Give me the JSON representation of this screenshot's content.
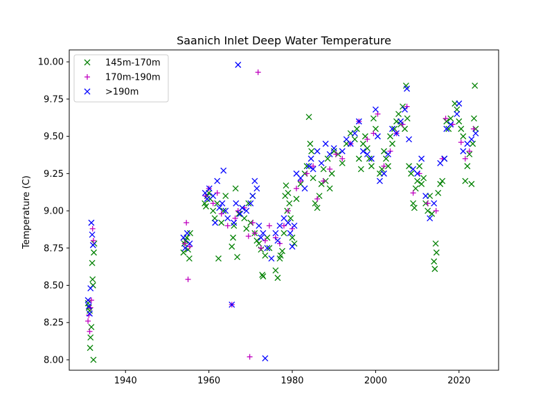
{
  "chart_data": {
    "type": "scatter",
    "title": "Saanich Inlet Deep Water Temperature",
    "xlabel": "",
    "ylabel": "Temperature (C)",
    "xlim": [
      1926.5,
      2029.5
    ],
    "ylim": [
      7.93,
      10.08
    ],
    "xticks": [
      1940,
      1960,
      1980,
      2000,
      2020
    ],
    "yticks": [
      "8.00",
      "8.25",
      "8.50",
      "8.75",
      "9.00",
      "9.25",
      "9.50",
      "9.75",
      "10.00"
    ],
    "grid": false,
    "legend_position": "upper-left",
    "series": [
      {
        "name": "145m-170m",
        "marker": "x",
        "color": "#008000",
        "points": [
          [
            1931.0,
            8.38
          ],
          [
            1931.2,
            8.35
          ],
          [
            1931.4,
            8.33
          ],
          [
            1931.5,
            8.08
          ],
          [
            1931.6,
            8.15
          ],
          [
            1931.8,
            8.22
          ],
          [
            1932.0,
            8.65
          ],
          [
            1932.1,
            8.54
          ],
          [
            1932.2,
            8.5
          ],
          [
            1932.3,
            8.0
          ],
          [
            1932.4,
            8.72
          ],
          [
            1932.5,
            8.78
          ],
          [
            1953.9,
            8.72
          ],
          [
            1954.1,
            8.78
          ],
          [
            1954.4,
            8.8
          ],
          [
            1954.7,
            8.82
          ],
          [
            1955.0,
            8.74
          ],
          [
            1955.3,
            8.68
          ],
          [
            1955.5,
            8.85
          ],
          [
            1959.0,
            9.05
          ],
          [
            1959.3,
            9.03
          ],
          [
            1959.6,
            9.1
          ],
          [
            1960.0,
            9.12
          ],
          [
            1960.3,
            9.08
          ],
          [
            1961.0,
            9.0
          ],
          [
            1961.4,
            8.95
          ],
          [
            1962.0,
            9.05
          ],
          [
            1962.3,
            8.68
          ],
          [
            1963.0,
            8.92
          ],
          [
            1963.5,
            9.0
          ],
          [
            1964.0,
            9.1
          ],
          [
            1965.5,
            8.76
          ],
          [
            1965.8,
            8.82
          ],
          [
            1966.0,
            8.9
          ],
          [
            1966.4,
            9.15
          ],
          [
            1966.8,
            8.69
          ],
          [
            1967.2,
            8.98
          ],
          [
            1968.0,
            9.02
          ],
          [
            1968.5,
            8.95
          ],
          [
            1969.0,
            8.88
          ],
          [
            1969.5,
            9.05
          ],
          [
            1970.0,
            8.92
          ],
          [
            1970.5,
            9.1
          ],
          [
            1971.0,
            8.85
          ],
          [
            1971.5,
            8.8
          ],
          [
            1972.0,
            8.78
          ],
          [
            1972.5,
            8.74
          ],
          [
            1972.8,
            8.57
          ],
          [
            1973.0,
            8.56
          ],
          [
            1973.5,
            8.7
          ],
          [
            1974.0,
            8.82
          ],
          [
            1974.5,
            8.75
          ],
          [
            1976.0,
            8.6
          ],
          [
            1976.5,
            8.55
          ],
          [
            1977.0,
            8.68
          ],
          [
            1977.2,
            8.7
          ],
          [
            1977.6,
            8.73
          ],
          [
            1978.0,
            8.85
          ],
          [
            1978.3,
            9.1
          ],
          [
            1978.5,
            9.17
          ],
          [
            1978.8,
            9.0
          ],
          [
            1979.0,
            9.12
          ],
          [
            1979.3,
            9.05
          ],
          [
            1979.6,
            8.95
          ],
          [
            1980.0,
            8.82
          ],
          [
            1980.5,
            8.78
          ],
          [
            1981.0,
            9.08
          ],
          [
            1982.0,
            9.18
          ],
          [
            1983.0,
            9.25
          ],
          [
            1983.5,
            9.3
          ],
          [
            1984.0,
            9.63
          ],
          [
            1984.3,
            9.45
          ],
          [
            1984.6,
            9.4
          ],
          [
            1985.0,
            9.22
          ],
          [
            1985.5,
            9.05
          ],
          [
            1986.0,
            9.02
          ],
          [
            1986.5,
            9.1
          ],
          [
            1987.0,
            9.18
          ],
          [
            1987.5,
            9.28
          ],
          [
            1988.0,
            9.2
          ],
          [
            1988.5,
            9.35
          ],
          [
            1989.0,
            9.15
          ],
          [
            1989.5,
            9.25
          ],
          [
            1990.0,
            9.4
          ],
          [
            1991.0,
            9.38
          ],
          [
            1992.0,
            9.32
          ],
          [
            1993.0,
            9.45
          ],
          [
            1994.0,
            9.52
          ],
          [
            1995.0,
            9.48
          ],
          [
            1995.5,
            9.55
          ],
          [
            1996.0,
            9.35
          ],
          [
            1996.5,
            9.28
          ],
          [
            1997.0,
            9.45
          ],
          [
            1997.5,
            9.5
          ],
          [
            1998.0,
            9.42
          ],
          [
            1998.5,
            9.35
          ],
          [
            1999.0,
            9.3
          ],
          [
            1999.5,
            9.62
          ],
          [
            2000.0,
            9.55
          ],
          [
            2001.0,
            9.25
          ],
          [
            2001.5,
            9.28
          ],
          [
            2002.0,
            9.4
          ],
          [
            2002.5,
            9.35
          ],
          [
            2003.0,
            9.3
          ],
          [
            2003.5,
            9.5
          ],
          [
            2004.0,
            9.45
          ],
          [
            2004.5,
            9.55
          ],
          [
            2005.0,
            9.6
          ],
          [
            2005.5,
            9.65
          ],
          [
            2006.0,
            9.58
          ],
          [
            2006.5,
            9.7
          ],
          [
            2007.0,
            9.55
          ],
          [
            2007.3,
            9.84
          ],
          [
            2007.6,
            9.62
          ],
          [
            2008.0,
            9.3
          ],
          [
            2008.5,
            9.25
          ],
          [
            2009.0,
            9.05
          ],
          [
            2009.3,
            9.02
          ],
          [
            2009.6,
            9.15
          ],
          [
            2010.0,
            9.2
          ],
          [
            2010.5,
            9.3
          ],
          [
            2011.0,
            9.18
          ],
          [
            2011.5,
            9.22
          ],
          [
            2012.0,
            9.05
          ],
          [
            2012.5,
            9.0
          ],
          [
            2013.0,
            9.1
          ],
          [
            2013.5,
            8.98
          ],
          [
            2014.0,
            8.66
          ],
          [
            2014.2,
            8.61
          ],
          [
            2014.4,
            8.78
          ],
          [
            2014.6,
            8.72
          ],
          [
            2015.0,
            9.12
          ],
          [
            2015.5,
            9.18
          ],
          [
            2016.0,
            9.2
          ],
          [
            2016.5,
            9.35
          ],
          [
            2017.0,
            9.6
          ],
          [
            2017.5,
            9.55
          ],
          [
            2018.0,
            9.62
          ],
          [
            2019.0,
            9.72
          ],
          [
            2019.5,
            9.68
          ],
          [
            2020.0,
            9.6
          ],
          [
            2020.5,
            9.55
          ],
          [
            2021.0,
            9.5
          ],
          [
            2021.5,
            9.2
          ],
          [
            2022.0,
            9.3
          ],
          [
            2022.5,
            9.38
          ],
          [
            2023.0,
            9.18
          ],
          [
            2023.3,
            9.45
          ],
          [
            2023.6,
            9.62
          ],
          [
            2023.8,
            9.84
          ],
          [
            2024.0,
            9.55
          ]
        ]
      },
      {
        "name": "170m-190m",
        "marker": "+",
        "color": "#bf00bf",
        "points": [
          [
            1931.0,
            8.26
          ],
          [
            1931.2,
            8.3
          ],
          [
            1931.4,
            8.19
          ],
          [
            1931.6,
            8.35
          ],
          [
            1931.8,
            8.4
          ],
          [
            1932.1,
            8.88
          ],
          [
            1932.3,
            8.8
          ],
          [
            1954.2,
            8.78
          ],
          [
            1954.6,
            8.92
          ],
          [
            1955.0,
            8.54
          ],
          [
            1955.4,
            8.76
          ],
          [
            1959.2,
            9.1
          ],
          [
            1960.0,
            9.15
          ],
          [
            1961.0,
            9.05
          ],
          [
            1962.0,
            9.12
          ],
          [
            1963.0,
            8.98
          ],
          [
            1964.5,
            8.9
          ],
          [
            1965.5,
            8.37
          ],
          [
            1966.3,
            8.95
          ],
          [
            1967.0,
            9.0
          ],
          [
            1968.5,
            9.02
          ],
          [
            1969.5,
            8.83
          ],
          [
            1969.8,
            8.02
          ],
          [
            1970.5,
            8.92
          ],
          [
            1971.0,
            8.85
          ],
          [
            1971.8,
            9.93
          ],
          [
            1972.5,
            8.75
          ],
          [
            1973.5,
            8.8
          ],
          [
            1974.5,
            8.9
          ],
          [
            1976.0,
            8.82
          ],
          [
            1977.0,
            8.78
          ],
          [
            1978.0,
            8.9
          ],
          [
            1979.0,
            9.0
          ],
          [
            1980.0,
            8.88
          ],
          [
            1981.0,
            9.15
          ],
          [
            1982.0,
            9.2
          ],
          [
            1983.5,
            9.25
          ],
          [
            1985.0,
            9.3
          ],
          [
            1986.0,
            9.08
          ],
          [
            1987.5,
            9.2
          ],
          [
            1989.0,
            9.28
          ],
          [
            1990.5,
            9.38
          ],
          [
            1992.0,
            9.35
          ],
          [
            1994.0,
            9.45
          ],
          [
            1996.0,
            9.6
          ],
          [
            1998.0,
            9.48
          ],
          [
            1999.5,
            9.52
          ],
          [
            2000.5,
            9.65
          ],
          [
            2002.0,
            9.3
          ],
          [
            2003.5,
            9.4
          ],
          [
            2005.0,
            9.52
          ],
          [
            2006.5,
            9.58
          ],
          [
            2007.5,
            9.7
          ],
          [
            2009.0,
            9.12
          ],
          [
            2010.5,
            9.25
          ],
          [
            2012.5,
            9.05
          ],
          [
            2014.5,
            9.0
          ],
          [
            2016.0,
            9.35
          ],
          [
            2016.8,
            9.62
          ],
          [
            2018.5,
            9.58
          ],
          [
            2020.5,
            9.46
          ],
          [
            2021.5,
            9.35
          ],
          [
            2022.5,
            9.4
          ],
          [
            2023.5,
            9.55
          ]
        ]
      },
      {
        "name": ">190m",
        "marker": "x",
        "color": "#0000ff",
        "points": [
          [
            1931.0,
            8.4
          ],
          [
            1931.2,
            8.36
          ],
          [
            1931.4,
            8.31
          ],
          [
            1931.6,
            8.48
          ],
          [
            1931.8,
            8.92
          ],
          [
            1932.0,
            8.84
          ],
          [
            1932.2,
            8.77
          ],
          [
            1953.9,
            8.82
          ],
          [
            1954.3,
            8.75
          ],
          [
            1954.8,
            8.85
          ],
          [
            1955.4,
            8.78
          ],
          [
            1959.1,
            9.12
          ],
          [
            1959.6,
            9.08
          ],
          [
            1960.1,
            9.15
          ],
          [
            1961.0,
            9.1
          ],
          [
            1961.5,
            8.92
          ],
          [
            1962.0,
            9.2
          ],
          [
            1962.5,
            9.02
          ],
          [
            1963.2,
            9.05
          ],
          [
            1963.5,
            9.27
          ],
          [
            1964.0,
            9.0
          ],
          [
            1964.5,
            8.95
          ],
          [
            1965.5,
            8.37
          ],
          [
            1966.0,
            8.92
          ],
          [
            1966.5,
            9.05
          ],
          [
            1967.0,
            9.98
          ],
          [
            1967.5,
            8.98
          ],
          [
            1968.0,
            9.02
          ],
          [
            1969.0,
            9.0
          ],
          [
            1970.0,
            9.05
          ],
          [
            1970.5,
            9.1
          ],
          [
            1971.0,
            9.2
          ],
          [
            1971.5,
            9.15
          ],
          [
            1972.0,
            8.9
          ],
          [
            1972.5,
            8.82
          ],
          [
            1973.0,
            8.85
          ],
          [
            1973.5,
            8.01
          ],
          [
            1974.0,
            8.75
          ],
          [
            1975.0,
            8.68
          ],
          [
            1976.0,
            8.85
          ],
          [
            1976.5,
            8.8
          ],
          [
            1977.0,
            8.9
          ],
          [
            1978.0,
            8.95
          ],
          [
            1979.0,
            8.92
          ],
          [
            1979.5,
            8.85
          ],
          [
            1980.0,
            8.76
          ],
          [
            1980.5,
            8.9
          ],
          [
            1981.0,
            9.25
          ],
          [
            1982.0,
            9.22
          ],
          [
            1983.0,
            9.15
          ],
          [
            1984.0,
            9.3
          ],
          [
            1984.5,
            9.35
          ],
          [
            1985.0,
            9.28
          ],
          [
            1986.0,
            9.4
          ],
          [
            1987.0,
            9.32
          ],
          [
            1988.0,
            9.45
          ],
          [
            1989.0,
            9.38
          ],
          [
            1990.0,
            9.42
          ],
          [
            1992.0,
            9.4
          ],
          [
            1993.0,
            9.48
          ],
          [
            1994.0,
            9.45
          ],
          [
            1995.0,
            9.52
          ],
          [
            1996.0,
            9.6
          ],
          [
            1997.0,
            9.4
          ],
          [
            1998.0,
            9.38
          ],
          [
            1999.0,
            9.35
          ],
          [
            2000.0,
            9.68
          ],
          [
            2000.5,
            9.5
          ],
          [
            2001.0,
            9.2
          ],
          [
            2002.0,
            9.25
          ],
          [
            2003.0,
            9.38
          ],
          [
            2004.0,
            9.55
          ],
          [
            2005.0,
            9.52
          ],
          [
            2006.0,
            9.6
          ],
          [
            2007.0,
            9.68
          ],
          [
            2007.5,
            9.82
          ],
          [
            2008.0,
            9.48
          ],
          [
            2009.0,
            9.28
          ],
          [
            2010.0,
            9.25
          ],
          [
            2011.0,
            9.35
          ],
          [
            2012.0,
            9.1
          ],
          [
            2013.0,
            8.95
          ],
          [
            2014.0,
            9.05
          ],
          [
            2015.5,
            9.32
          ],
          [
            2016.5,
            9.35
          ],
          [
            2017.0,
            9.55
          ],
          [
            2018.0,
            9.58
          ],
          [
            2019.5,
            9.65
          ],
          [
            2020.0,
            9.72
          ],
          [
            2021.0,
            9.4
          ],
          [
            2022.0,
            9.45
          ],
          [
            2023.0,
            9.48
          ],
          [
            2024.0,
            9.52
          ]
        ]
      }
    ]
  }
}
